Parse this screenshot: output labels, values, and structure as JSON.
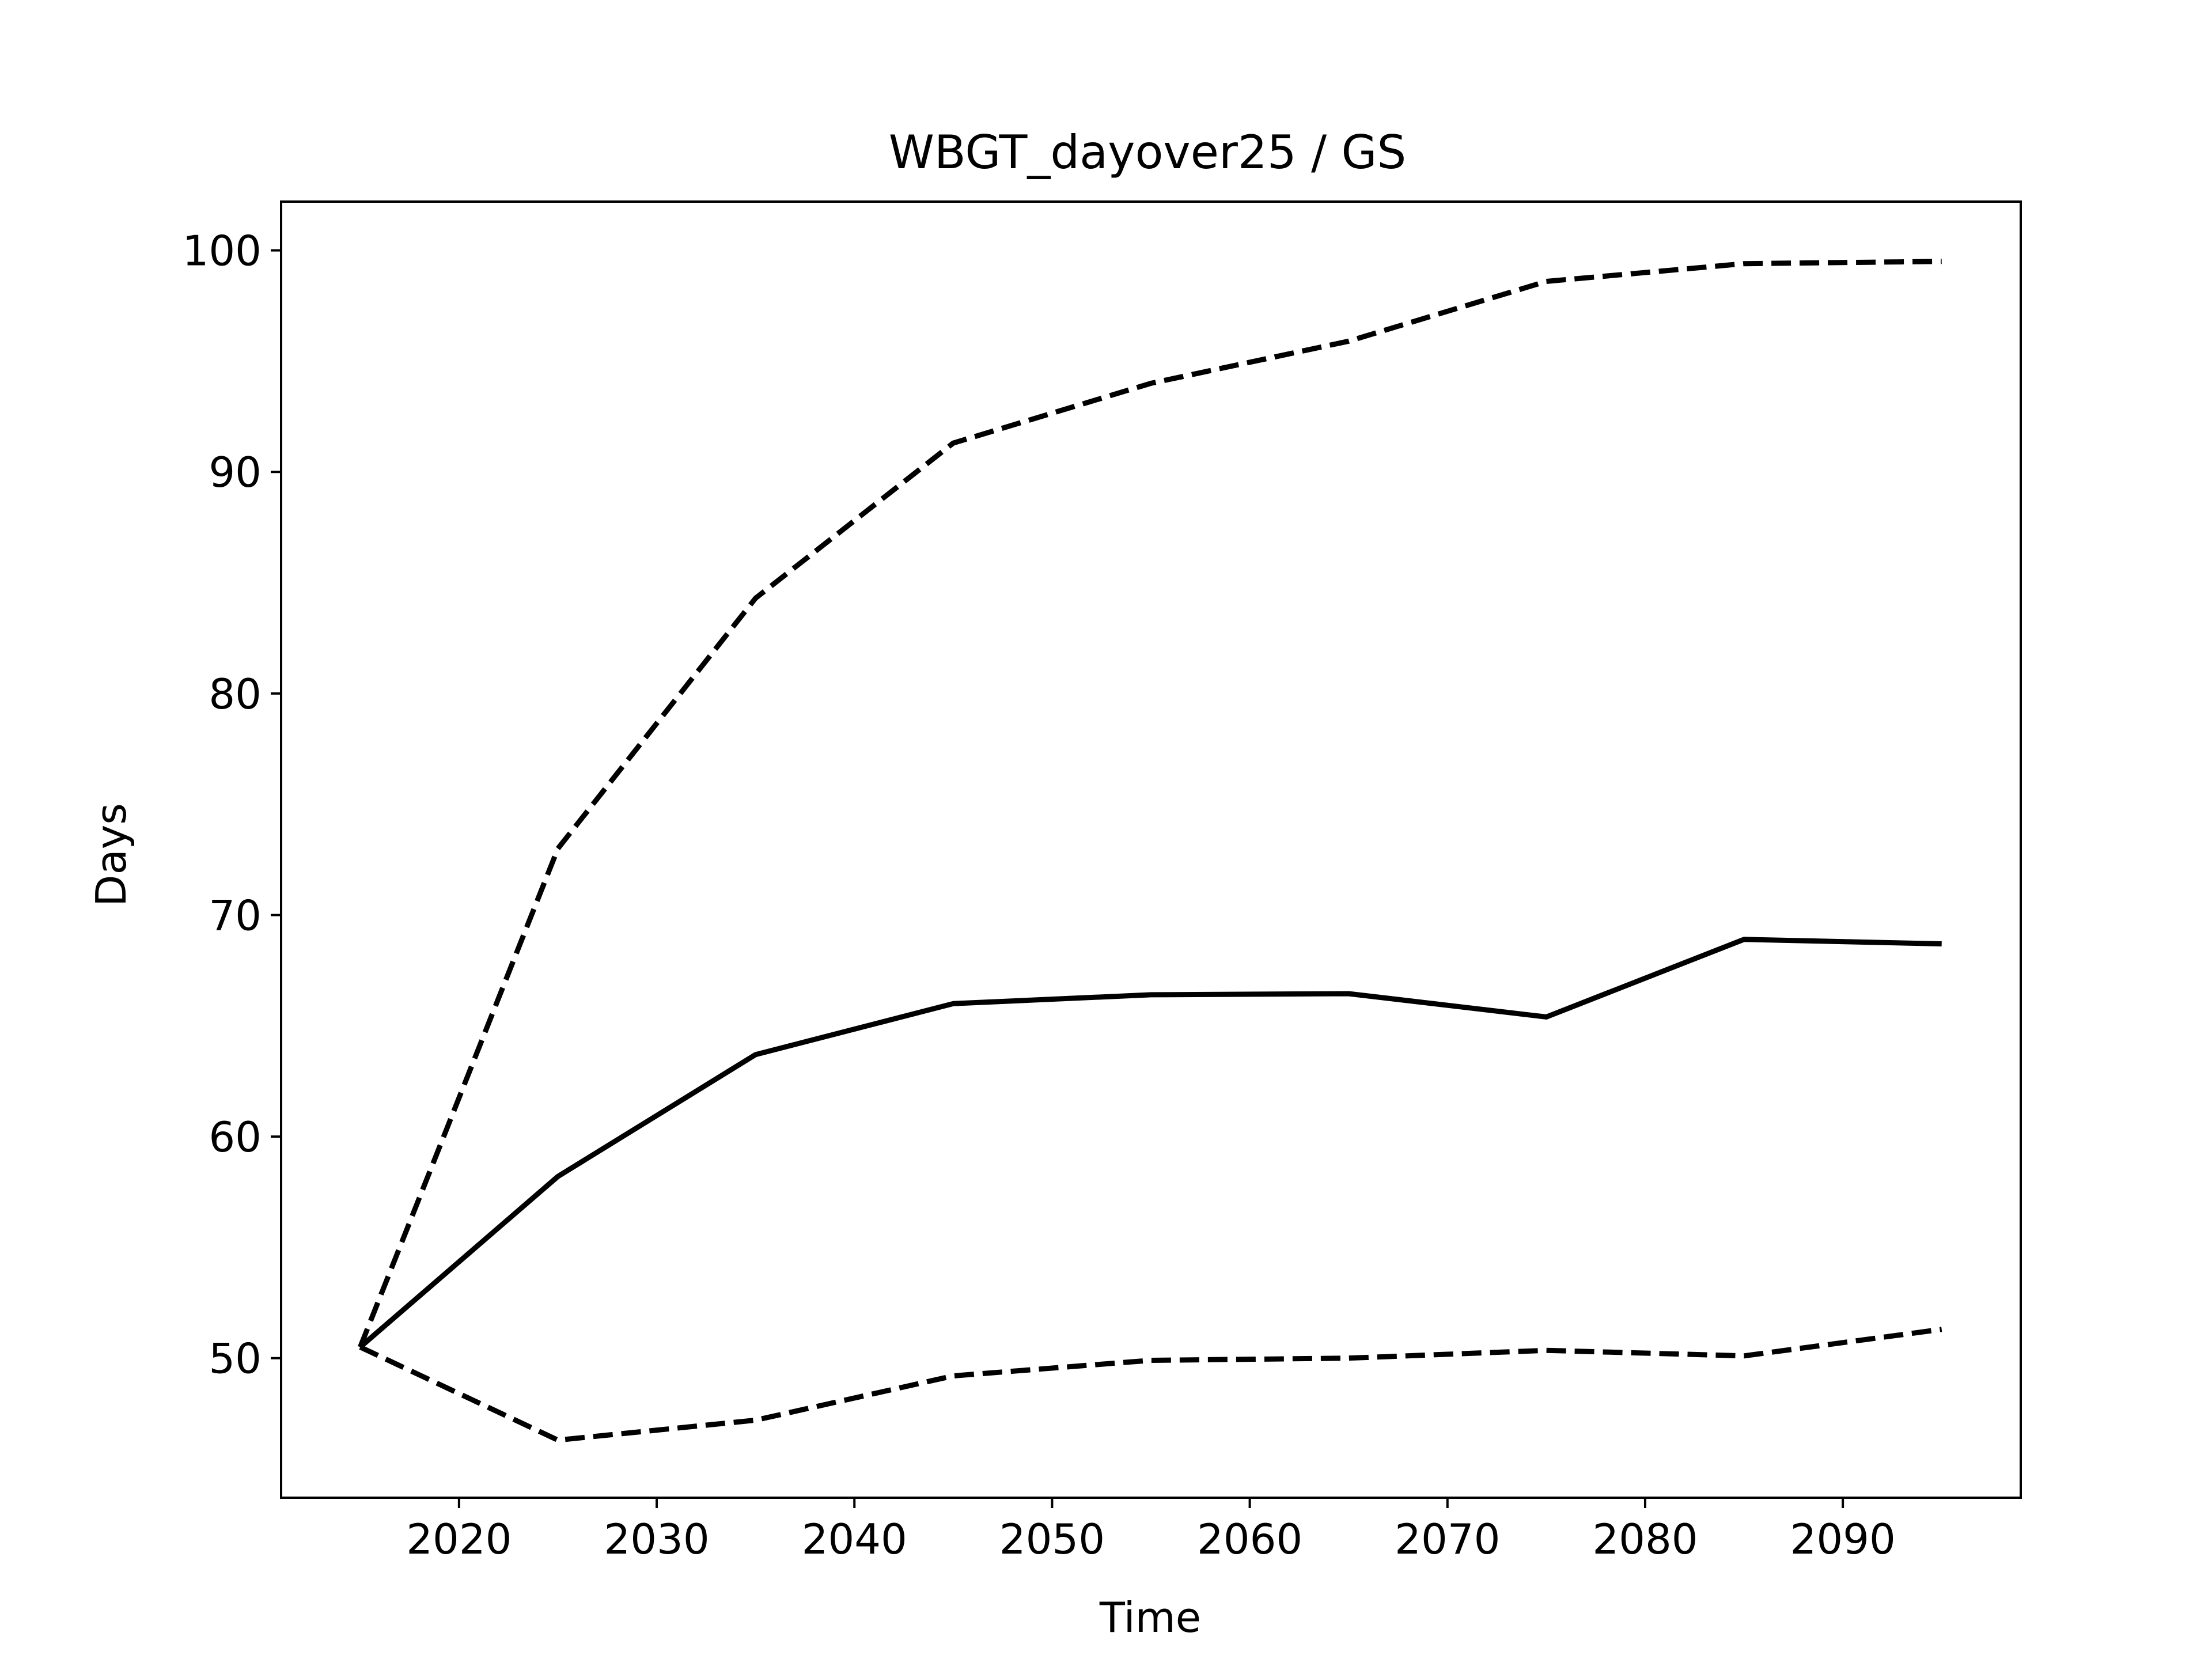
{
  "chart_data": {
    "type": "line",
    "title": "WBGT_dayover25 / GS",
    "xlabel": "Time",
    "ylabel": "Days",
    "xlim": [
      2011,
      2099
    ],
    "ylim": [
      43.7,
      102.2
    ],
    "xticks": [
      2020,
      2030,
      2040,
      2050,
      2060,
      2070,
      2080,
      2090
    ],
    "yticks": [
      50,
      60,
      70,
      80,
      90,
      100
    ],
    "grid": false,
    "x": [
      2015,
      2025,
      2035,
      2045,
      2055,
      2065,
      2075,
      2085,
      2095
    ],
    "series": [
      {
        "style": "solid",
        "color": "#000000",
        "values": [
          50.5,
          58.2,
          63.7,
          66.0,
          66.4,
          66.45,
          65.4,
          68.9,
          68.7
        ]
      },
      {
        "style": "dashed",
        "color": "#000000",
        "values": [
          50.5,
          73.0,
          84.3,
          91.3,
          94.0,
          95.9,
          98.6,
          99.4,
          99.5
        ]
      },
      {
        "style": "dashed",
        "color": "#000000",
        "values": [
          50.5,
          46.3,
          47.2,
          49.2,
          49.9,
          50.0,
          50.35,
          50.1,
          51.3
        ]
      }
    ]
  }
}
